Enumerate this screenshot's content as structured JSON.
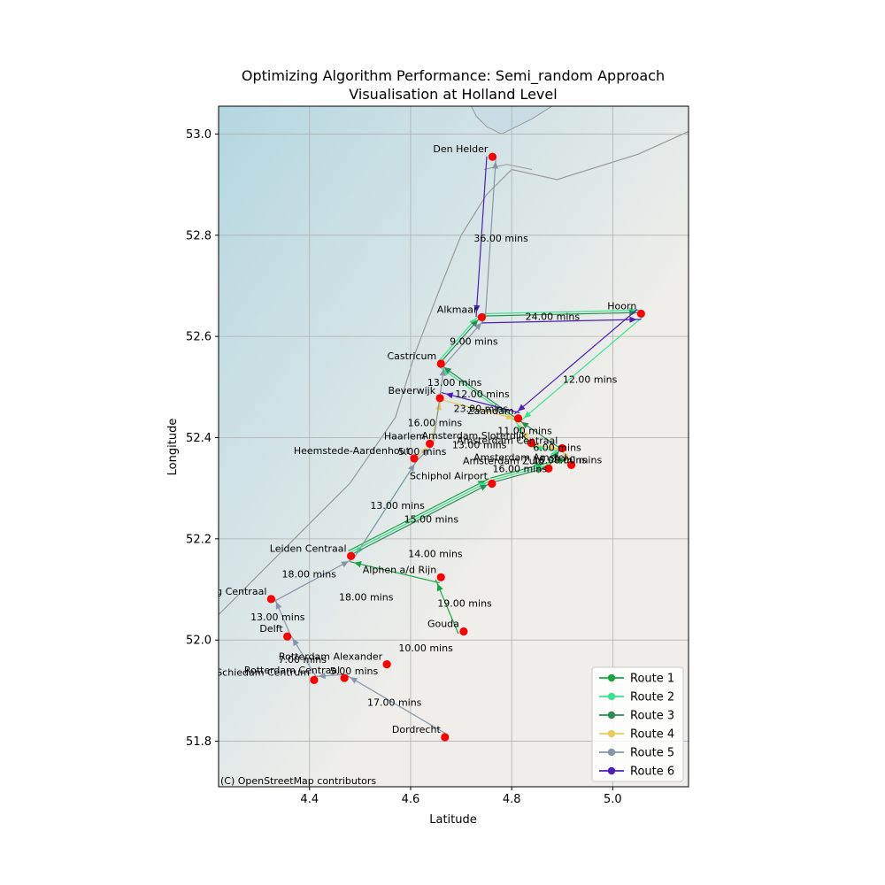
{
  "chart_data": {
    "type": "line",
    "title": "Optimizing Algorithm Performance: Semi_random Approach",
    "subtitle": "Visualisation at Holland Level",
    "xlabel": "Latitude",
    "ylabel": "Longitude",
    "xlim": [
      4.22,
      5.15
    ],
    "ylim": [
      51.71,
      53.055
    ],
    "xticks": [
      4.4,
      4.6,
      4.8,
      5.0
    ],
    "xtick_labels": [
      "4.4",
      "4.6",
      "4.8",
      "5.0"
    ],
    "yticks": [
      51.8,
      52.0,
      52.2,
      52.4,
      52.6,
      52.8,
      53.0
    ],
    "ytick_labels": [
      "51.8",
      "52.0",
      "52.2",
      "52.4",
      "52.6",
      "52.8",
      "53.0"
    ],
    "grid": true,
    "legend_position": "lower-right",
    "attribution": "(C) OpenStreetMap contributors",
    "colors": {
      "station": "#ff0000",
      "land": "#efeeea",
      "sea": "#b4d7e0",
      "border": "#999999",
      "grid": "#b0b0b0"
    },
    "stations": [
      {
        "name": "Den Helder",
        "x": 4.762,
        "y": 52.955
      },
      {
        "name": "Alkmaar",
        "x": 4.741,
        "y": 52.638
      },
      {
        "name": "Hoorn",
        "x": 5.056,
        "y": 52.645
      },
      {
        "name": "Castricum",
        "x": 4.66,
        "y": 52.546
      },
      {
        "name": "Beverwijk",
        "x": 4.658,
        "y": 52.478
      },
      {
        "name": "Zaandam",
        "x": 4.813,
        "y": 52.438
      },
      {
        "name": "Haarlem",
        "x": 4.638,
        "y": 52.388
      },
      {
        "name": "Amsterdam Sloterdijk",
        "x": 4.839,
        "y": 52.389
      },
      {
        "name": "Amsterdam Centraal",
        "x": 4.9,
        "y": 52.379
      },
      {
        "name": "Amsterdam Amstel",
        "x": 4.918,
        "y": 52.346
      },
      {
        "name": "Amsterdam Zuid",
        "x": 4.873,
        "y": 52.339
      },
      {
        "name": "Heemstede-Aardenhout",
        "x": 4.607,
        "y": 52.359
      },
      {
        "name": "Schiphol Airport",
        "x": 4.761,
        "y": 52.309
      },
      {
        "name": "Leiden Centraal",
        "x": 4.482,
        "y": 52.166
      },
      {
        "name": "Alphen a/d Rijn",
        "x": 4.66,
        "y": 52.124
      },
      {
        "name": "Den Haag Centraal",
        "x": 4.324,
        "y": 52.081
      },
      {
        "name": "Gouda",
        "x": 4.705,
        "y": 52.017
      },
      {
        "name": "Delft",
        "x": 4.356,
        "y": 52.007
      },
      {
        "name": "Rotterdam Alexander",
        "x": 4.553,
        "y": 51.952
      },
      {
        "name": "Rotterdam Centraal",
        "x": 4.469,
        "y": 51.925
      },
      {
        "name": "Schiedam Centrum",
        "x": 4.409,
        "y": 51.921
      },
      {
        "name": "Dordrecht",
        "x": 4.668,
        "y": 51.808
      }
    ],
    "series": [
      {
        "name": "Route 1",
        "color": "#16a540",
        "stations": [
          "Gouda",
          "Alphen a/d Rijn",
          "Leiden Centraal",
          "Schiphol Airport",
          "Amsterdam Zuid",
          "Amsterdam Amstel"
        ]
      },
      {
        "name": "Route 2",
        "color": "#38e48d",
        "stations": [
          "Heemstede-Aardenhout",
          "Leiden Centraal",
          "Schiphol Airport",
          "Amsterdam Zuid",
          "Amsterdam Centraal",
          "Amsterdam Sloterdijk",
          "Zaandam",
          "Castricum",
          "Alkmaar",
          "Hoorn",
          "Zaandam"
        ]
      },
      {
        "name": "Route 3",
        "color": "#2e8b57",
        "stations": [
          "Leiden Centraal",
          "Schiphol Airport",
          "Amsterdam Zuid",
          "Amsterdam Centraal",
          "Zaandam",
          "Castricum",
          "Alkmaar",
          "Hoorn"
        ]
      },
      {
        "name": "Route 4",
        "color": "#e8cb5c",
        "stations": [
          "Heemstede-Aardenhout",
          "Haarlem",
          "Beverwijk",
          "Zaandam",
          "Amsterdam Sloterdijk",
          "Amsterdam Centraal",
          "Amsterdam Amstel"
        ]
      },
      {
        "name": "Route 5",
        "color": "#8696a8",
        "stations": [
          "Dordrecht",
          "Rotterdam Centraal",
          "Schiedam Centrum",
          "Delft",
          "Den Haag Centraal",
          "Leiden Centraal",
          "Heemstede-Aardenhout",
          "Haarlem",
          "Castricum",
          "Alkmaar",
          "Den Helder"
        ]
      },
      {
        "name": "Route 6",
        "color": "#4b1fb8",
        "stations": [
          "Den Helder",
          "Alkmaar",
          "Hoorn",
          "Zaandam",
          "Beverwijk"
        ]
      }
    ],
    "duration_labels": [
      {
        "text": "36.00 mins",
        "x": 4.779,
        "y": 52.794
      },
      {
        "text": "24.00 mins",
        "x": 4.881,
        "y": 52.64
      },
      {
        "text": "9.00 mins",
        "x": 4.725,
        "y": 52.591
      },
      {
        "text": "12.00 mins",
        "x": 4.955,
        "y": 52.515
      },
      {
        "text": "13.00 mins",
        "x": 4.687,
        "y": 52.509
      },
      {
        "text": "12.00 mins",
        "x": 4.742,
        "y": 52.487
      },
      {
        "text": "23.00 mins",
        "x": 4.739,
        "y": 52.458
      },
      {
        "text": "16.00 mins",
        "x": 4.648,
        "y": 52.43
      },
      {
        "text": "11.00 mins",
        "x": 4.826,
        "y": 52.414
      },
      {
        "text": "13.00 mins",
        "x": 4.736,
        "y": 52.386
      },
      {
        "text": "6.00 mins",
        "x": 4.89,
        "y": 52.381
      },
      {
        "text": "5.00 mins",
        "x": 4.623,
        "y": 52.373
      },
      {
        "text": "16.00 mins",
        "x": 4.895,
        "y": 52.356
      },
      {
        "text": "8.00 mins",
        "x": 4.931,
        "y": 52.356
      },
      {
        "text": "16.00 mins",
        "x": 4.816,
        "y": 52.339
      },
      {
        "text": "13.00 mins",
        "x": 4.574,
        "y": 52.266
      },
      {
        "text": "15.00 mins",
        "x": 4.641,
        "y": 52.239
      },
      {
        "text": "14.00 mins",
        "x": 4.649,
        "y": 52.171
      },
      {
        "text": "18.00 mins",
        "x": 4.399,
        "y": 52.131
      },
      {
        "text": "18.00 mins",
        "x": 4.512,
        "y": 52.085
      },
      {
        "text": "19.00 mins",
        "x": 4.707,
        "y": 52.073
      },
      {
        "text": "13.00 mins",
        "x": 4.337,
        "y": 52.046
      },
      {
        "text": "10.00 mins",
        "x": 4.63,
        "y": 51.985
      },
      {
        "text": "7.00 mins",
        "x": 4.386,
        "y": 51.962
      },
      {
        "text": "5.00 mins",
        "x": 4.488,
        "y": 51.939
      },
      {
        "text": "17.00 mins",
        "x": 4.568,
        "y": 51.877
      }
    ]
  }
}
